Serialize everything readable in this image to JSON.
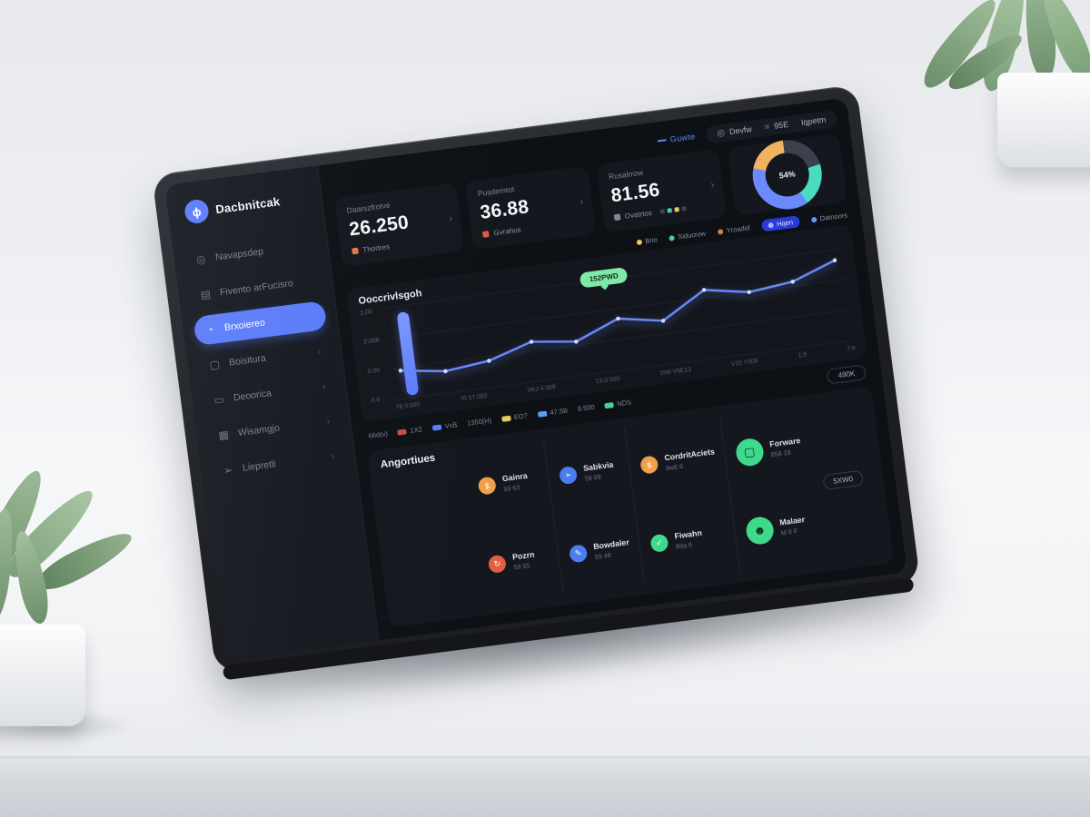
{
  "app": {
    "name": "Dacbnitcak",
    "accent_color": "#5b7cfa"
  },
  "sidebar": {
    "items": [
      {
        "label": "Navapsdep",
        "glyph": "◎"
      },
      {
        "label": "Fivento arFucisro",
        "glyph": "▤"
      },
      {
        "label": "Brxoiereo",
        "glyph": "◔",
        "active": true
      },
      {
        "label": "Boisitura",
        "glyph": "▢",
        "chevron": "›"
      },
      {
        "label": "Deoorica",
        "glyph": "▭",
        "chevron": "›"
      },
      {
        "label": "Wisamgjo",
        "glyph": "▦",
        "chevron": "›"
      },
      {
        "label": "Liepretli",
        "glyph": "➢",
        "chevron": "›"
      }
    ]
  },
  "topbar": {
    "link": "Guwte",
    "buttons": [
      {
        "label": "Devfw",
        "glyph": "◎"
      },
      {
        "label": "95E",
        "glyph": "⌗"
      },
      {
        "label": "Iqpetm",
        "glyph": ""
      }
    ]
  },
  "stats": [
    {
      "label": "Daarszfrotve",
      "value": "26.250",
      "sub": "Thortres",
      "sub_color": "#e0784a",
      "chevron": "›"
    },
    {
      "label": "Pusdemtot",
      "value": "36.88",
      "sub": "Gvrahus",
      "sub_color": "#d95a45",
      "chevron": "›"
    },
    {
      "label": "Rusalrrow",
      "value": "81.56",
      "sub": "Ovatrtos",
      "sub_color": "#7d8698",
      "chevron": "›"
    }
  ],
  "donut": {
    "center_label": "54%",
    "segments": [
      {
        "name": "slate",
        "color": "#3c424d",
        "value": 22
      },
      {
        "name": "teal",
        "color": "#49dcc0",
        "value": 20
      },
      {
        "name": "blue",
        "color": "#6b8afd",
        "value": 38
      },
      {
        "name": "orange",
        "color": "#f0b35f",
        "value": 20
      }
    ]
  },
  "legend": [
    {
      "label": "Brio",
      "color": "#e6c85c"
    },
    {
      "label": "Siducrow",
      "color": "#45d09a"
    },
    {
      "label": "Yroadid",
      "color": "#c9803f"
    },
    {
      "label": "Hqen",
      "color": "#5b7cfa"
    },
    {
      "label": "Datnoors",
      "color": "#5b9bfa"
    }
  ],
  "chart": {
    "title": "Ooccrivlsgoh",
    "tooltip": "152PWD",
    "y_ticks": [
      "1.00",
      "2.006",
      "0.00",
      "0.0"
    ],
    "x_ticks": [
      "78 0.000",
      "70 17.050",
      "VKJ 4.089",
      "13.0 000",
      "1N9 V9E13",
      "V10 Y509",
      "1:9",
      "7:9"
    ],
    "chart_data": {
      "type": "line",
      "x": [
        "78 0.000",
        "70 17.050",
        "VKJ 4.089",
        "13.0 000",
        "1N9 V9E13",
        "V10 Y509",
        "1:9",
        "7:9"
      ],
      "values": [
        30,
        22,
        28,
        45,
        38,
        60,
        50,
        82,
        72,
        78,
        98
      ],
      "ylim": [
        0,
        100
      ],
      "line_color": "#6b8afd",
      "highlight_bar_color": "#6b8afd",
      "tooltip_label": "152PWD",
      "legend_position": "top-right",
      "grid": true
    }
  },
  "badges": {
    "items": [
      {
        "label": "66d(v)",
        "chip": ""
      },
      {
        "label": "1X2",
        "chip": "#c0504a"
      },
      {
        "label": "VxB",
        "chip": "#5b7cfa"
      },
      {
        "label": "1350(H)",
        "chip": ""
      },
      {
        "label": "EO?",
        "chip": "#e6c85c"
      },
      {
        "label": "47.5B",
        "chip": "#5b9bfa"
      },
      {
        "label": "9.500",
        "chip": ""
      },
      {
        "label": "NDS",
        "chip": "#45d09a"
      }
    ],
    "button": "490K"
  },
  "activity": {
    "title": "Angortiues",
    "items": [
      {
        "label": "Gainra",
        "sub": "59 63",
        "color": "#f0a04b",
        "glyph": "$"
      },
      {
        "label": "Pozrn",
        "sub": "59 55",
        "color": "#e0603f",
        "glyph": "↻"
      },
      {
        "label": "Sabkvia",
        "sub": "59 99",
        "color": "#4a7df0",
        "glyph": "➢"
      },
      {
        "label": "Bowdaler",
        "sub": "59 48",
        "color": "#4a7df0",
        "glyph": "✎"
      },
      {
        "label": "CordritAciets",
        "sub": "9w6 6",
        "color": "#f0a04b",
        "glyph": "$"
      },
      {
        "label": "Fiwahn",
        "sub": "89a 6",
        "color": "#3fd98c",
        "glyph": "✓"
      }
    ],
    "featured": [
      {
        "label": "Forware",
        "sub": "858 18",
        "color": "#3fd98c",
        "glyph": "▢"
      },
      {
        "label": "Malaer",
        "sub": "M 8 F",
        "color": "#3fd98c",
        "glyph": "☻"
      }
    ],
    "button": "5XW0"
  }
}
